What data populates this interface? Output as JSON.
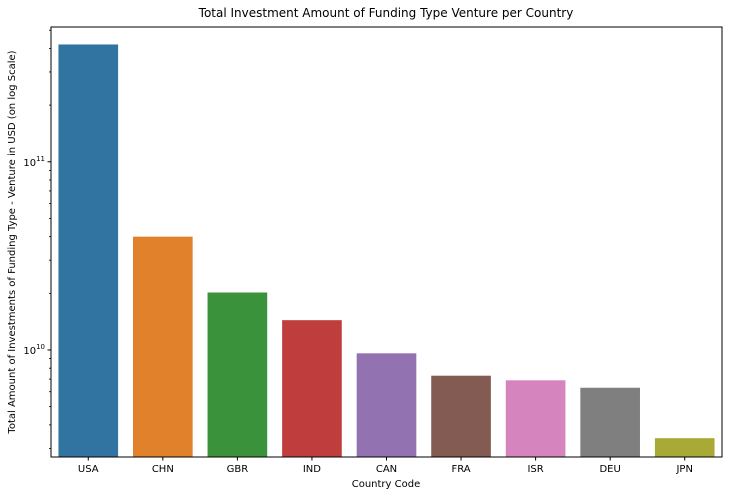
{
  "chart_data": {
    "type": "bar",
    "title": "Total Investment Amount of Funding Type Venture per Country",
    "xlabel": "Country Code",
    "ylabel": "Total Amount of Investments of Funding Type - Venture in USD (on log Scale)",
    "yscale": "log",
    "ylim": [
      2700000000,
      520000000000
    ],
    "yticks": [
      {
        "value": 10000000000,
        "base": "10",
        "exp": "10"
      },
      {
        "value": 100000000000,
        "base": "10",
        "exp": "11"
      }
    ],
    "grid": false,
    "legend": "none",
    "categories": [
      "USA",
      "CHN",
      "GBR",
      "IND",
      "CAN",
      "FRA",
      "ISR",
      "DEU",
      "JPN"
    ],
    "values": [
      420000000000,
      40000000000,
      20200000000,
      14400000000,
      9600000000,
      7300000000,
      6900000000,
      6300000000,
      3400000000
    ],
    "colors": [
      "#3274a1",
      "#e1812c",
      "#3a923a",
      "#c03d3e",
      "#9372b2",
      "#845b53",
      "#d684bd",
      "#7f7f7f",
      "#a9aa35"
    ]
  }
}
